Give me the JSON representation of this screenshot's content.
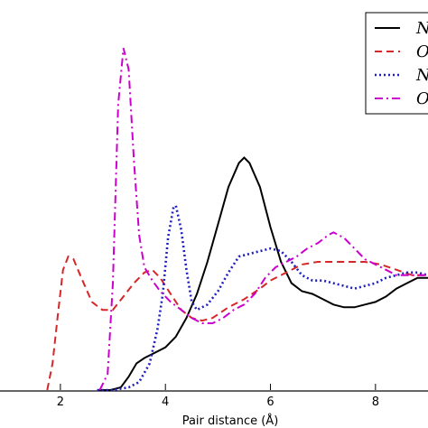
{
  "chart_data": {
    "type": "line",
    "xlabel": "Pair distance (Å)",
    "ylabel": "",
    "xlim": [
      0.0,
      9.0
    ],
    "ylim": [
      0.0,
      1.45
    ],
    "xticks": [
      "2",
      "4",
      "6",
      "8"
    ],
    "grid": false,
    "legend_position": "top-right",
    "series": [
      {
        "name": "N",
        "color": "#000000",
        "style": "solid",
        "points": [
          [
            2.7,
            0.0
          ],
          [
            2.95,
            0.0
          ],
          [
            3.15,
            0.01
          ],
          [
            3.3,
            0.05
          ],
          [
            3.45,
            0.1
          ],
          [
            3.6,
            0.12
          ],
          [
            3.8,
            0.14
          ],
          [
            4.0,
            0.16
          ],
          [
            4.2,
            0.2
          ],
          [
            4.4,
            0.27
          ],
          [
            4.6,
            0.36
          ],
          [
            4.8,
            0.48
          ],
          [
            5.0,
            0.62
          ],
          [
            5.2,
            0.76
          ],
          [
            5.4,
            0.85
          ],
          [
            5.5,
            0.87
          ],
          [
            5.6,
            0.85
          ],
          [
            5.8,
            0.76
          ],
          [
            6.0,
            0.61
          ],
          [
            6.2,
            0.48
          ],
          [
            6.4,
            0.4
          ],
          [
            6.6,
            0.37
          ],
          [
            6.8,
            0.36
          ],
          [
            7.0,
            0.34
          ],
          [
            7.2,
            0.32
          ],
          [
            7.4,
            0.31
          ],
          [
            7.6,
            0.31
          ],
          [
            7.8,
            0.32
          ],
          [
            8.0,
            0.33
          ],
          [
            8.2,
            0.35
          ],
          [
            8.4,
            0.38
          ],
          [
            8.6,
            0.4
          ],
          [
            8.8,
            0.42
          ],
          [
            9.0,
            0.42
          ]
        ]
      },
      {
        "name": "O",
        "color": "#d62728",
        "style": "dashed",
        "points": [
          [
            1.75,
            0.0
          ],
          [
            1.85,
            0.1
          ],
          [
            1.95,
            0.28
          ],
          [
            2.05,
            0.45
          ],
          [
            2.15,
            0.5
          ],
          [
            2.25,
            0.49
          ],
          [
            2.4,
            0.42
          ],
          [
            2.6,
            0.33
          ],
          [
            2.8,
            0.3
          ],
          [
            3.0,
            0.3
          ],
          [
            3.2,
            0.35
          ],
          [
            3.4,
            0.4
          ],
          [
            3.6,
            0.44
          ],
          [
            3.75,
            0.45
          ],
          [
            3.9,
            0.42
          ],
          [
            4.1,
            0.36
          ],
          [
            4.3,
            0.3
          ],
          [
            4.5,
            0.27
          ],
          [
            4.7,
            0.26
          ],
          [
            4.9,
            0.27
          ],
          [
            5.2,
            0.31
          ],
          [
            5.5,
            0.34
          ],
          [
            5.8,
            0.38
          ],
          [
            6.0,
            0.41
          ],
          [
            6.3,
            0.44
          ],
          [
            6.6,
            0.47
          ],
          [
            6.9,
            0.48
          ],
          [
            7.2,
            0.48
          ],
          [
            7.5,
            0.48
          ],
          [
            7.8,
            0.48
          ],
          [
            8.1,
            0.47
          ],
          [
            8.4,
            0.45
          ],
          [
            8.7,
            0.43
          ],
          [
            9.0,
            0.43
          ]
        ]
      },
      {
        "name": "N",
        "color": "#1f1fbf",
        "style": "dotted",
        "points": [
          [
            2.7,
            0.0
          ],
          [
            3.0,
            0.0
          ],
          [
            3.3,
            0.01
          ],
          [
            3.5,
            0.03
          ],
          [
            3.7,
            0.1
          ],
          [
            3.85,
            0.23
          ],
          [
            3.95,
            0.36
          ],
          [
            4.05,
            0.57
          ],
          [
            4.15,
            0.68
          ],
          [
            4.2,
            0.69
          ],
          [
            4.3,
            0.6
          ],
          [
            4.4,
            0.45
          ],
          [
            4.5,
            0.33
          ],
          [
            4.6,
            0.3
          ],
          [
            4.8,
            0.32
          ],
          [
            5.0,
            0.37
          ],
          [
            5.2,
            0.44
          ],
          [
            5.4,
            0.5
          ],
          [
            5.6,
            0.51
          ],
          [
            5.8,
            0.52
          ],
          [
            6.0,
            0.53
          ],
          [
            6.2,
            0.52
          ],
          [
            6.4,
            0.48
          ],
          [
            6.6,
            0.43
          ],
          [
            6.8,
            0.41
          ],
          [
            7.0,
            0.41
          ],
          [
            7.2,
            0.4
          ],
          [
            7.4,
            0.39
          ],
          [
            7.6,
            0.38
          ],
          [
            7.8,
            0.39
          ],
          [
            8.0,
            0.4
          ],
          [
            8.2,
            0.42
          ],
          [
            8.4,
            0.43
          ],
          [
            8.6,
            0.44
          ],
          [
            8.8,
            0.44
          ],
          [
            9.0,
            0.43
          ]
        ]
      },
      {
        "name": "O",
        "color": "#cc00cc",
        "style": "dashdot",
        "points": [
          [
            2.75,
            0.0
          ],
          [
            2.9,
            0.06
          ],
          [
            3.0,
            0.4
          ],
          [
            3.1,
            1.07
          ],
          [
            3.2,
            1.28
          ],
          [
            3.3,
            1.2
          ],
          [
            3.4,
            0.86
          ],
          [
            3.5,
            0.58
          ],
          [
            3.6,
            0.46
          ],
          [
            3.75,
            0.41
          ],
          [
            3.9,
            0.37
          ],
          [
            4.1,
            0.33
          ],
          [
            4.3,
            0.3
          ],
          [
            4.5,
            0.27
          ],
          [
            4.7,
            0.25
          ],
          [
            4.9,
            0.25
          ],
          [
            5.1,
            0.27
          ],
          [
            5.3,
            0.3
          ],
          [
            5.5,
            0.32
          ],
          [
            5.7,
            0.36
          ],
          [
            5.9,
            0.42
          ],
          [
            6.1,
            0.46
          ],
          [
            6.3,
            0.48
          ],
          [
            6.5,
            0.5
          ],
          [
            6.7,
            0.53
          ],
          [
            6.9,
            0.55
          ],
          [
            7.1,
            0.58
          ],
          [
            7.2,
            0.59
          ],
          [
            7.4,
            0.57
          ],
          [
            7.6,
            0.53
          ],
          [
            7.8,
            0.49
          ],
          [
            8.0,
            0.47
          ],
          [
            8.2,
            0.45
          ],
          [
            8.4,
            0.43
          ],
          [
            8.6,
            0.43
          ],
          [
            8.8,
            0.43
          ],
          [
            9.0,
            0.43
          ]
        ]
      }
    ]
  }
}
